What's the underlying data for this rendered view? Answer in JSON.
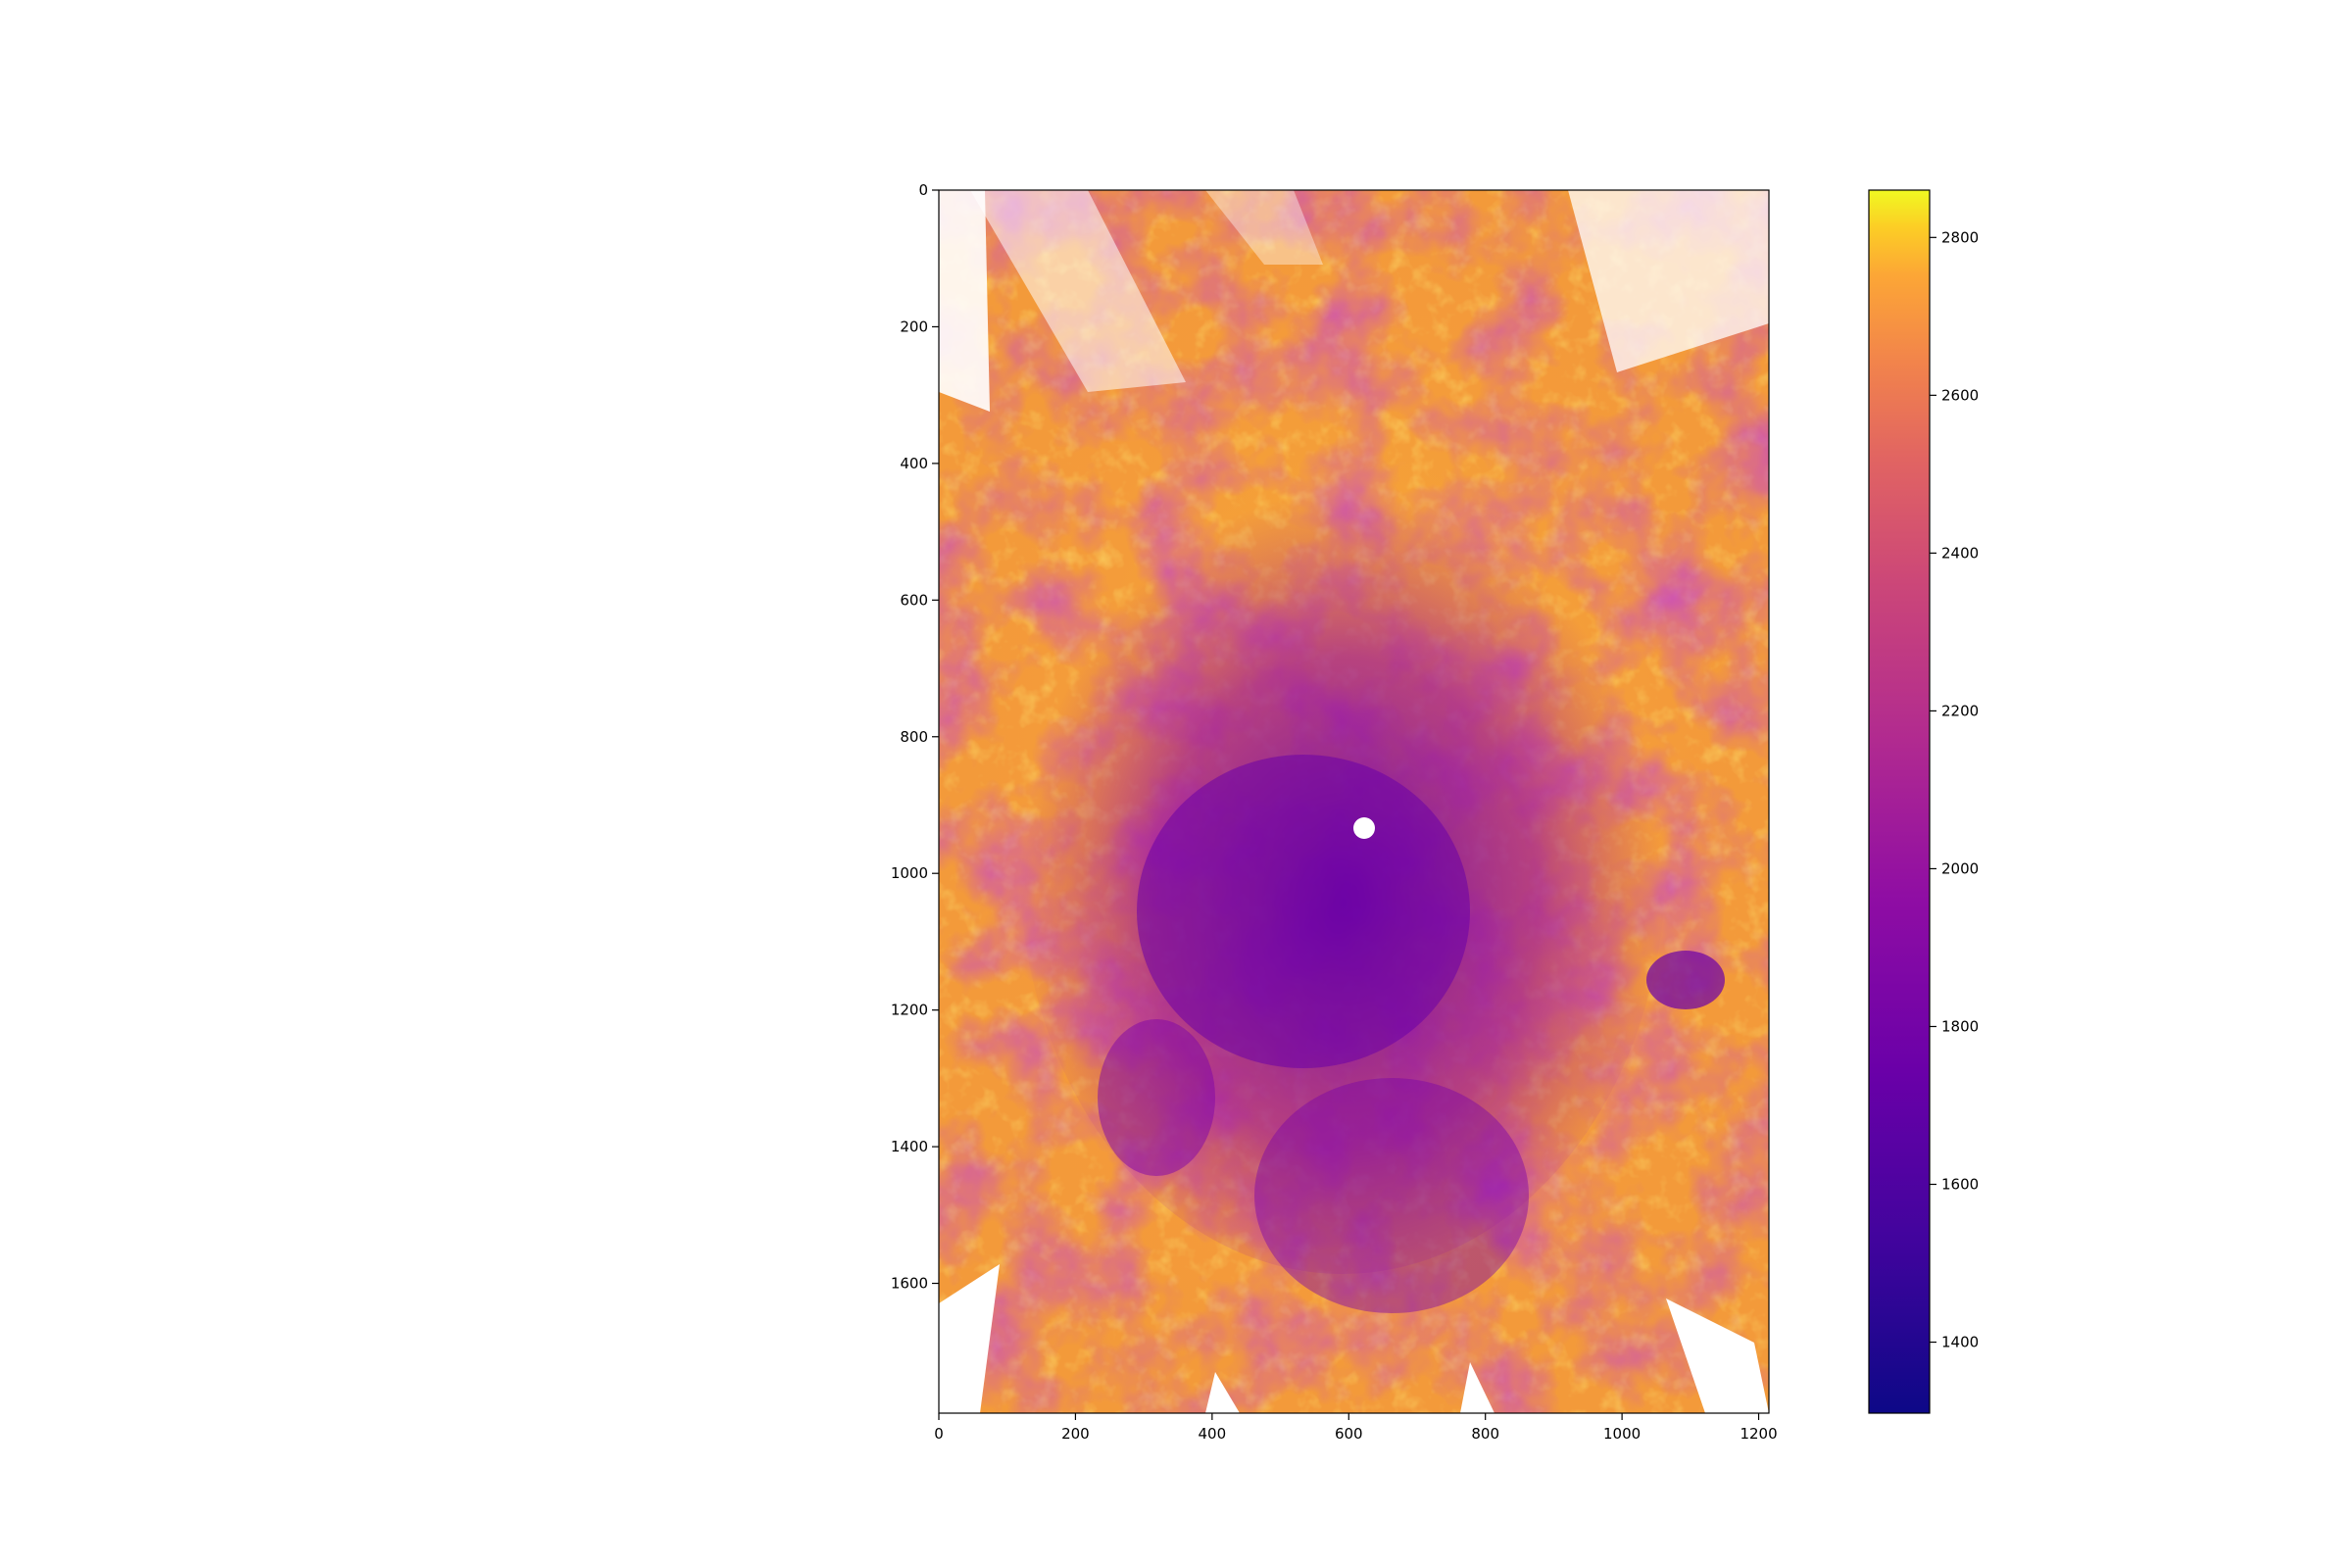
{
  "chart_data": {
    "type": "heatmap",
    "title": "",
    "xlabel": "",
    "ylabel": "",
    "xlim": [
      0,
      1215
    ],
    "ylim": [
      1790,
      0
    ],
    "x_ticks": [
      "0",
      "200",
      "400",
      "600",
      "800",
      "1000",
      "1200"
    ],
    "y_ticks": [
      "0",
      "200",
      "400",
      "600",
      "800",
      "1000",
      "1200",
      "1400",
      "1600"
    ],
    "colorbar": {
      "colormap": "plasma",
      "range": [
        1310,
        2860
      ],
      "ticks": [
        "1400",
        "1600",
        "1800",
        "2000",
        "2200",
        "2400",
        "2600",
        "2800"
      ]
    },
    "grid": false,
    "colors": {
      "low": "#0d0887",
      "mid_low": "#7e03a8",
      "mid": "#cc4778",
      "mid_high": "#f89540",
      "high": "#f0f921"
    }
  }
}
